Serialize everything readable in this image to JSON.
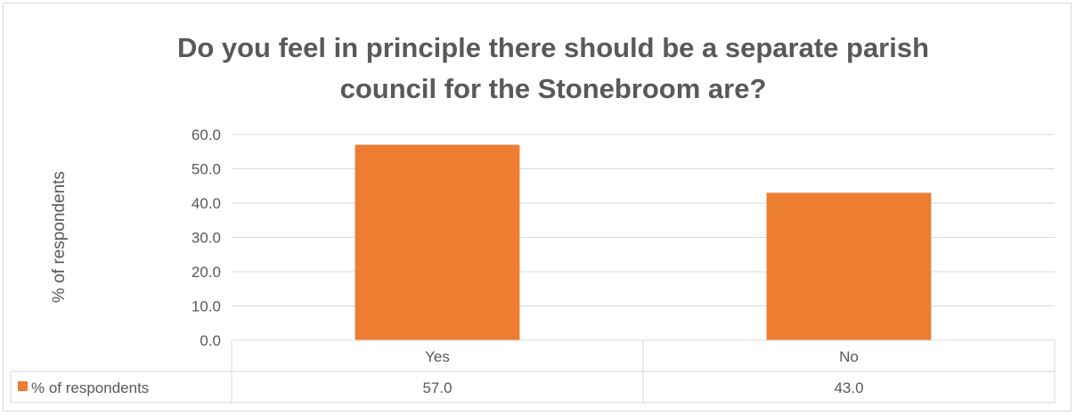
{
  "chart_data": {
    "type": "bar",
    "title_line1": "Do you feel in principle there should be a separate parish",
    "title_line2": "council for the Stonebroom are?",
    "ylabel": "% of respondents",
    "categories": [
      "Yes",
      "No"
    ],
    "series": [
      {
        "name": "% of respondents",
        "values": [
          57.0,
          43.0
        ],
        "labels": [
          "57.0",
          "43.0"
        ],
        "color": "#ed7d31"
      }
    ],
    "ylim": [
      0,
      60
    ],
    "yticks": [
      "0.0",
      "10.0",
      "20.0",
      "30.0",
      "40.0",
      "50.0",
      "60.0"
    ],
    "grid": true,
    "legend": "data-table"
  }
}
